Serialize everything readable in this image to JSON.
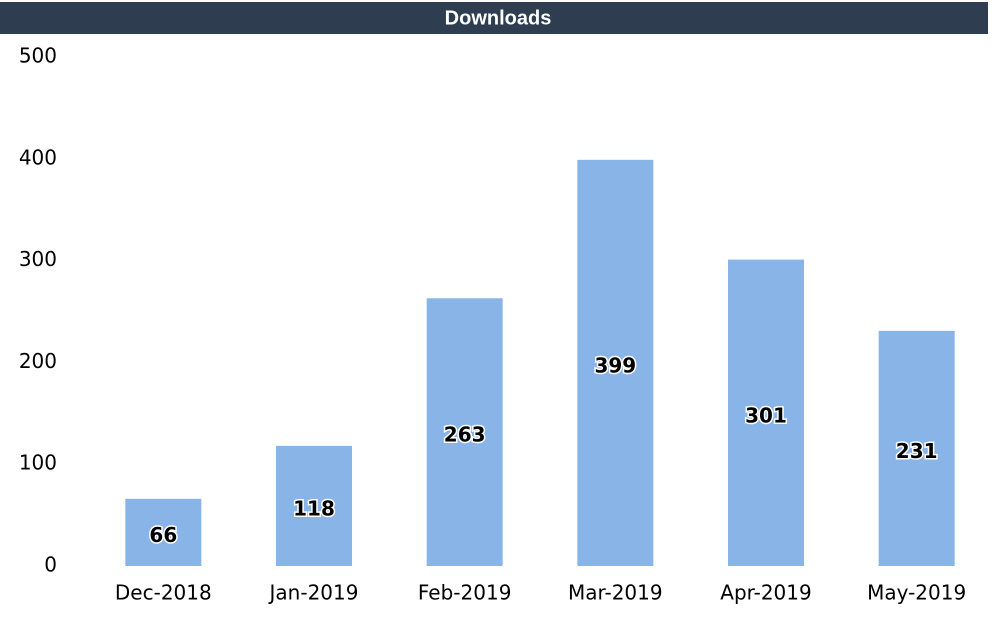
{
  "chart_data": {
    "type": "bar",
    "title": "Downloads",
    "categories": [
      "Dec-2018",
      "Jan-2019",
      "Feb-2019",
      "Mar-2019",
      "Apr-2019",
      "May-2019"
    ],
    "values": [
      66,
      118,
      263,
      399,
      301,
      231
    ],
    "color": "#89b4e8",
    "ylim": [
      0,
      500
    ],
    "yticks": [
      0,
      100,
      200,
      300,
      400,
      500
    ],
    "grid": false
  }
}
